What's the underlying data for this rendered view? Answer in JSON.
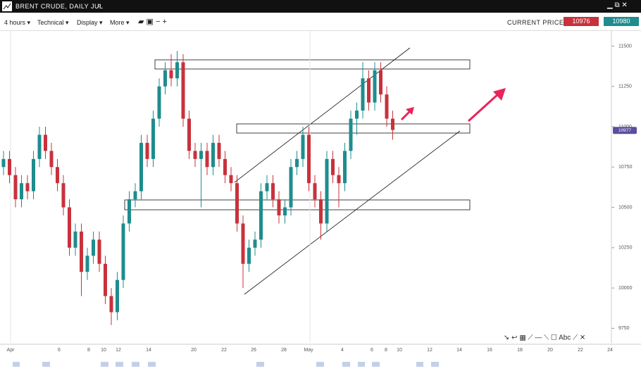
{
  "header": {
    "title": "BRENT CRUDE, DAILY JUL"
  },
  "toolbar": {
    "items": [
      "4 hours",
      "Technical",
      "Display",
      "More"
    ],
    "current_price_label": "CURRENT PRICE:",
    "sell": 10976,
    "buy": 10980
  },
  "chart_data": {
    "type": "candlestick",
    "open": [
      10750,
      10800,
      10700,
      10550,
      10650,
      10600,
      10800,
      10950,
      10850,
      10750,
      10650,
      10500,
      10250,
      10350,
      10100,
      10200,
      10300,
      10150,
      9950,
      9850,
      10050,
      10400,
      10550,
      10600,
      10900,
      10800,
      11050,
      11250,
      11350,
      11300,
      11400,
      11050,
      10850,
      10800,
      10850,
      10750,
      10900,
      10800,
      10700,
      10650,
      10400,
      10150,
      10250,
      10300,
      10600,
      10650,
      10550,
      10450,
      10500,
      10750,
      10800,
      10950,
      10650,
      10550,
      10400,
      10800,
      10700,
      10650,
      10850,
      11050,
      11100,
      11300,
      11150,
      11350,
      11200,
      11050
    ],
    "high": [
      10850,
      10850,
      10750,
      10700,
      10700,
      10850,
      11000,
      11000,
      10900,
      10800,
      10700,
      10550,
      10400,
      10400,
      10250,
      10350,
      10350,
      10200,
      10000,
      10100,
      10450,
      10600,
      10650,
      10950,
      10950,
      11100,
      11300,
      11400,
      11450,
      11470,
      11450,
      11100,
      10900,
      10900,
      10900,
      10950,
      10950,
      10850,
      10750,
      10700,
      10450,
      10300,
      10350,
      10650,
      10700,
      10700,
      10600,
      10550,
      10800,
      10850,
      11000,
      11000,
      10700,
      10600,
      10850,
      10850,
      10750,
      10900,
      11100,
      11150,
      11400,
      11350,
      11400,
      11400,
      11250,
      11100
    ],
    "low": [
      10700,
      10650,
      10500,
      10500,
      10550,
      10550,
      10750,
      10800,
      10700,
      10600,
      10450,
      10200,
      10200,
      9950,
      10050,
      10150,
      10100,
      9900,
      9770,
      9800,
      10000,
      10350,
      10500,
      10550,
      10750,
      10750,
      11000,
      11200,
      11250,
      11250,
      11000,
      10800,
      10750,
      10500,
      10700,
      10700,
      10750,
      10650,
      10600,
      10350,
      10000,
      10100,
      10200,
      10250,
      10550,
      10500,
      10400,
      10400,
      10450,
      10700,
      10750,
      10600,
      10500,
      10300,
      10350,
      10650,
      10500,
      10600,
      10800,
      10950,
      11050,
      11100,
      11100,
      11150,
      11000,
      10920
    ],
    "close": [
      10800,
      10700,
      10550,
      10650,
      10600,
      10800,
      10950,
      10850,
      10750,
      10650,
      10500,
      10250,
      10350,
      10100,
      10200,
      10300,
      10150,
      9950,
      9850,
      10050,
      10400,
      10550,
      10600,
      10900,
      10800,
      11050,
      11250,
      11350,
      11300,
      11400,
      11050,
      10850,
      10800,
      10850,
      10750,
      10900,
      10800,
      10700,
      10650,
      10400,
      10150,
      10250,
      10300,
      10600,
      10650,
      10550,
      10450,
      10500,
      10750,
      10800,
      10950,
      10650,
      10550,
      10400,
      10800,
      10700,
      10650,
      10850,
      11050,
      11100,
      11300,
      11150,
      11350,
      11200,
      11050,
      10980
    ],
    "up_color": "#1f8c8e",
    "down_color": "#c8323c",
    "ylim": [
      9660,
      11598
    ],
    "yticks": [
      11500,
      11250,
      11000,
      10750,
      10500,
      10250,
      10000,
      9750
    ],
    "xtick_labels": [
      "Apr",
      "6",
      "8",
      "10",
      "12",
      "14",
      "20",
      "22",
      "26",
      "28",
      "May",
      "4",
      "6",
      "8",
      "10",
      "12",
      "14",
      "16",
      "18",
      "20",
      "22",
      "24"
    ],
    "last_price": 10977,
    "last_price_color": "#5a4f9e",
    "grid": true
  }
}
